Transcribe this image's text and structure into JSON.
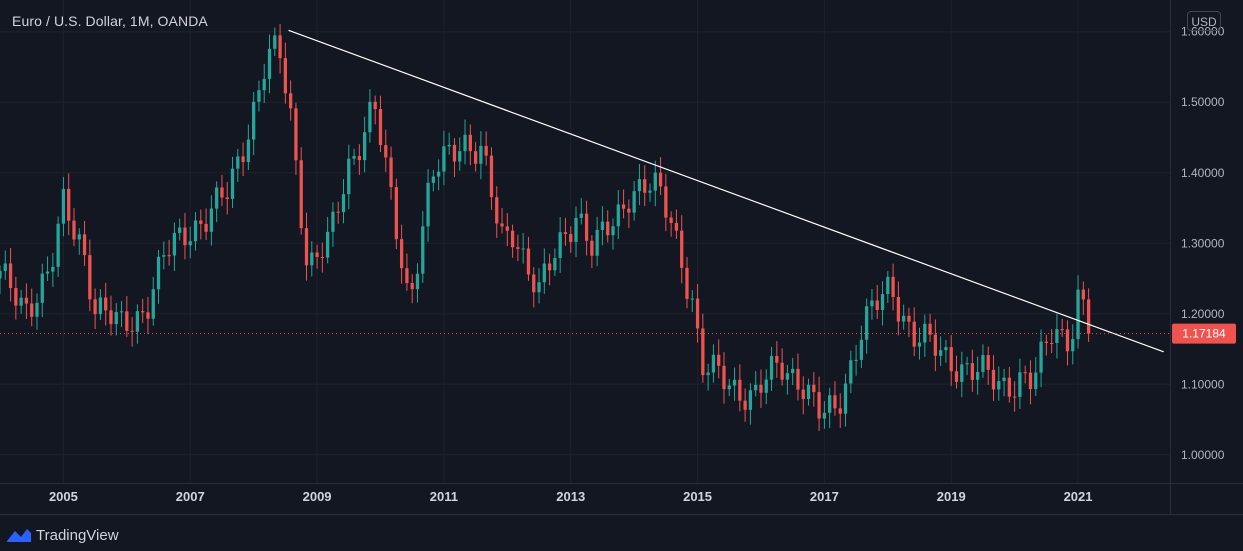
{
  "header": {
    "title": "Euro / U.S. Dollar, 1M, OANDA",
    "currency_button": "USD"
  },
  "footer": {
    "brand": "TradingView"
  },
  "colors": {
    "background": "#131722",
    "grid": "#1e222d",
    "up": "#26a69a",
    "down": "#ef5350",
    "trendline": "#ffffff",
    "price_line": "#ef5350"
  },
  "chart_data": {
    "type": "candlestick",
    "title": "Euro / U.S. Dollar, 1M, OANDA",
    "interval": "1M",
    "source": "OANDA",
    "currency": "USD",
    "x_ticks": [
      "2005",
      "2007",
      "2009",
      "2011",
      "2013",
      "2015",
      "2017",
      "2019",
      "2021"
    ],
    "y_ticks": [
      "1.60000",
      "1.50000",
      "1.40000",
      "1.30000",
      "1.20000",
      "1.10000",
      "1.00000"
    ],
    "ylim": [
      0.96,
      1.645
    ],
    "xlim": [
      2004.0,
      2022.45
    ],
    "last_price": 1.17184,
    "last_price_label": "1.17184",
    "trendline": {
      "start": [
        2008.55,
        1.602
      ],
      "end": [
        2022.35,
        1.146
      ]
    },
    "anchors": [
      [
        2004.0,
        1.25
      ],
      [
        2004.4,
        1.21
      ],
      [
        2004.8,
        1.26
      ],
      [
        2005.0,
        1.35
      ],
      [
        2005.3,
        1.3
      ],
      [
        2005.5,
        1.21
      ],
      [
        2005.9,
        1.18
      ],
      [
        2006.3,
        1.21
      ],
      [
        2006.6,
        1.28
      ],
      [
        2006.95,
        1.32
      ],
      [
        2007.3,
        1.34
      ],
      [
        2007.6,
        1.37
      ],
      [
        2007.9,
        1.46
      ],
      [
        2008.2,
        1.56
      ],
      [
        2008.4,
        1.57
      ],
      [
        2008.6,
        1.47
      ],
      [
        2008.85,
        1.27
      ],
      [
        2009.2,
        1.3
      ],
      [
        2009.5,
        1.41
      ],
      [
        2009.9,
        1.5
      ],
      [
        2010.1,
        1.39
      ],
      [
        2010.45,
        1.22
      ],
      [
        2010.8,
        1.39
      ],
      [
        2011.3,
        1.45
      ],
      [
        2011.6,
        1.43
      ],
      [
        2011.9,
        1.3
      ],
      [
        2012.1,
        1.32
      ],
      [
        2012.5,
        1.23
      ],
      [
        2012.9,
        1.31
      ],
      [
        2013.1,
        1.35
      ],
      [
        2013.35,
        1.29
      ],
      [
        2013.7,
        1.33
      ],
      [
        2013.95,
        1.38
      ],
      [
        2014.3,
        1.38
      ],
      [
        2014.6,
        1.33
      ],
      [
        2014.95,
        1.21
      ],
      [
        2015.05,
        1.12
      ],
      [
        2015.4,
        1.11
      ],
      [
        2015.9,
        1.08
      ],
      [
        2016.3,
        1.13
      ],
      [
        2016.6,
        1.11
      ],
      [
        2016.95,
        1.05
      ],
      [
        2017.2,
        1.07
      ],
      [
        2017.6,
        1.18
      ],
      [
        2018.05,
        1.24
      ],
      [
        2018.4,
        1.17
      ],
      [
        2018.9,
        1.14
      ],
      [
        2019.3,
        1.12
      ],
      [
        2019.8,
        1.1
      ],
      [
        2020.1,
        1.11
      ],
      [
        2020.3,
        1.1
      ],
      [
        2020.6,
        1.18
      ],
      [
        2020.85,
        1.17
      ],
      [
        2020.95,
        1.19
      ],
      [
        2021.0,
        1.22
      ],
      [
        2021.08,
        1.21
      ],
      [
        2021.17,
        1.17184
      ]
    ]
  }
}
